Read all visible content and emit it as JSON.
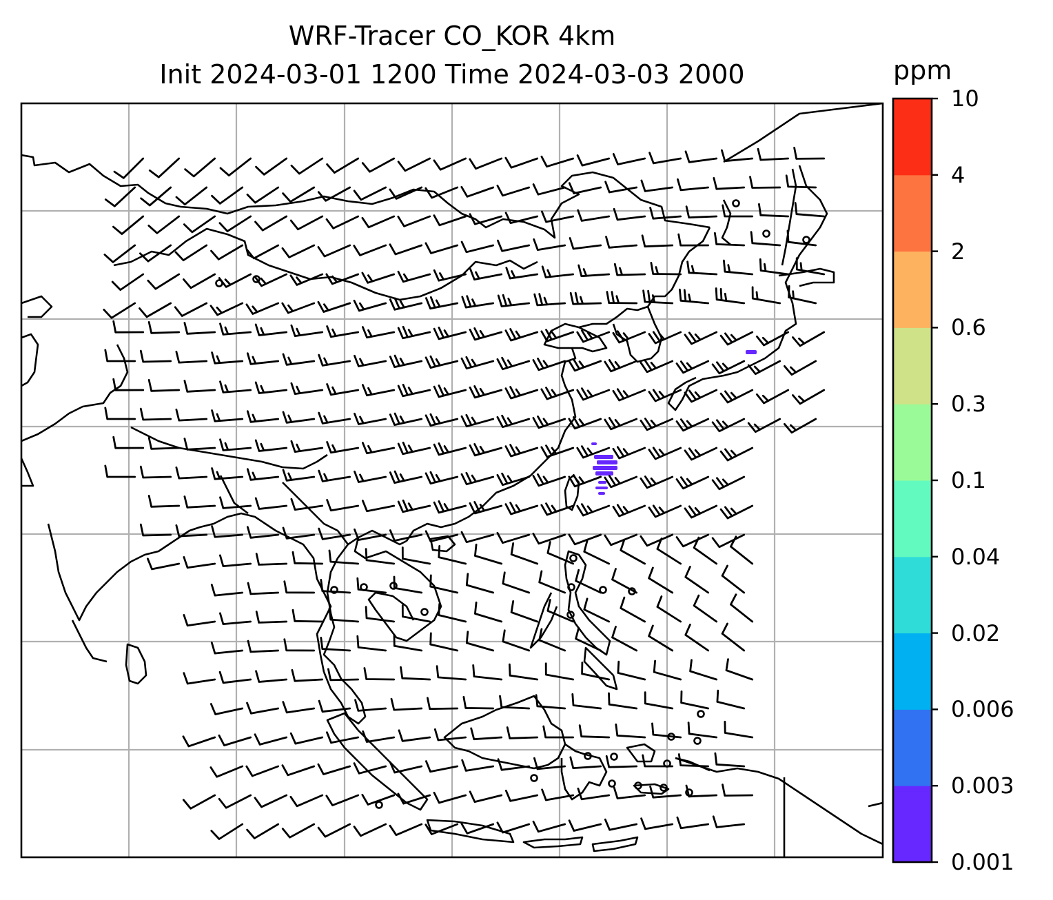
{
  "title": {
    "line1": "WRF-Tracer CO_KOR 4km",
    "line2": "Init 2024-03-01 1200 Time 2024-03-03 2000"
  },
  "colorbar": {
    "unit": "ppm",
    "levels": [
      "0.001",
      "0.003",
      "0.006",
      "0.02",
      "0.04",
      "0.1",
      "0.3",
      "0.6",
      "2",
      "4",
      "10"
    ],
    "colors": [
      "#6628ff",
      "#3172f2",
      "#00b0f0",
      "#2fdcd8",
      "#63fac0",
      "#9bfa98",
      "#cfe288",
      "#fdb260",
      "#fd7440",
      "#fc2e16"
    ]
  },
  "map": {
    "region": "East and Southeast Asia",
    "gridlines": true,
    "tracer_color": "#6628ff",
    "wind_barbs": true
  }
}
